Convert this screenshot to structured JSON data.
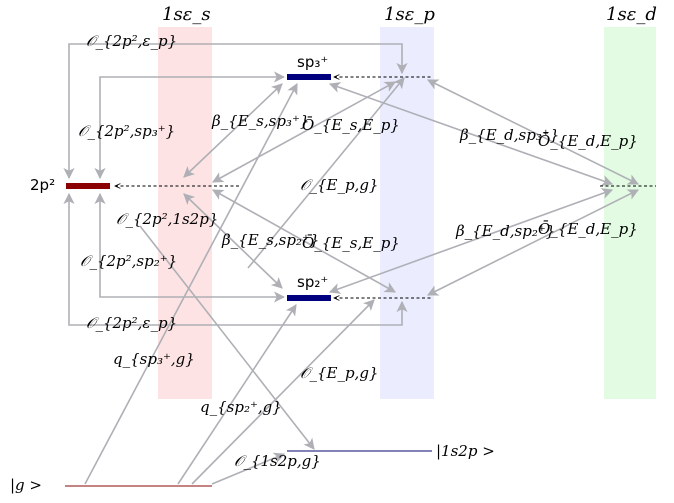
{
  "colors": {
    "band_s": "#fde3e3",
    "band_p": "#ececff",
    "band_d": "#e3fbe3",
    "arrow": "#aeb0b6",
    "level_2p2": "#8b0000",
    "level_sp": "#00007f",
    "level_1s2p": "#5a5aa0",
    "level_g": "#b05a5a",
    "dashed": "#000000"
  },
  "columns": {
    "s": "1sε_s",
    "p": "1sε_p",
    "d": "1sε_d"
  },
  "states": {
    "two_p2": "2p²",
    "sp3": "sp₃⁺",
    "sp2": "sp₂⁺",
    "ket_1s2p": "|1s2p >",
    "ket_g": "|g >"
  },
  "couplings": {
    "O_2p2_ep_top": "𝒪_{2p²,ε_p}",
    "O_2p2_sp3": "𝒪_{2p²,sp₃⁺}",
    "beta_Es_sp3": "β_{E_s,sp₃⁺}",
    "Obar_Es_Ep_upper": "Ō_{E_s,E_p}",
    "O_Ep_g_upper": "𝒪_{E_p,g}",
    "O_2p2_1s2p": "𝒪_{2p²,1s2p}",
    "beta_Es_sp2": "β_{E_s,sp₂⁺}",
    "Obar_Es_Ep_lower": "Ō_{E_s,E_p}",
    "O_2p2_sp2": "𝒪_{2p²,sp₂⁺}",
    "O_2p2_ep_bottom": "𝒪_{2p²,ε_p}",
    "beta_Ed_sp3": "β_{E_d,sp₃⁺}",
    "Obar_Ed_Ep_upper": "Ō_{E_d,E_p}",
    "beta_Ed_sp2": "β_{E_d,sp₂⁺}",
    "Obar_Ed_Ep_lower": "Ō_{E_d,E_p}",
    "q_sp3_g": "q_{sp₃⁺,g}",
    "O_Ep_g_lower": "𝒪_{E_p,g}",
    "q_sp2_g": "q_{sp₂⁺,g}",
    "O_1s2p_g": "𝒪_{1s2p,g}"
  }
}
